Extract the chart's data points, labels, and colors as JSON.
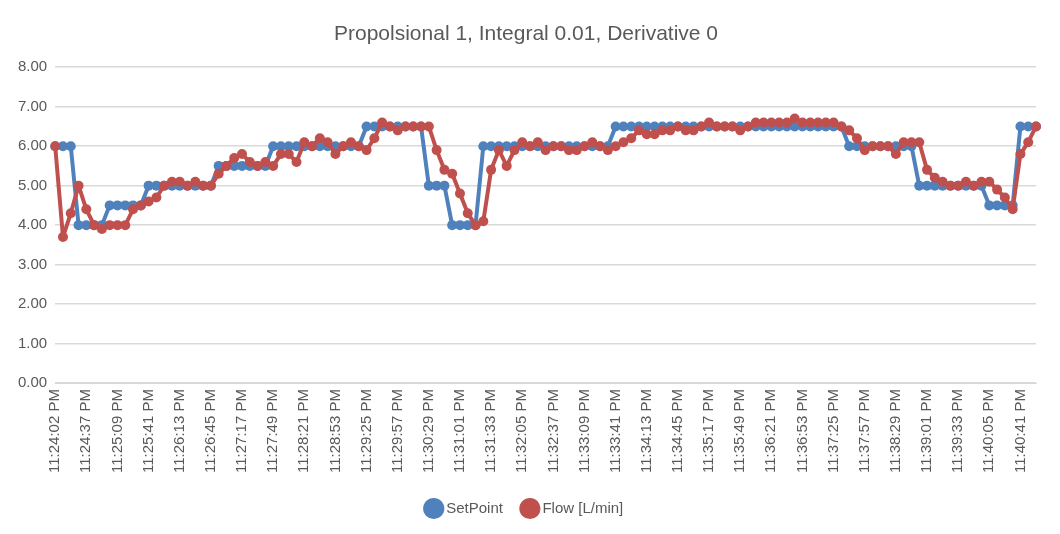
{
  "chart_data": {
    "type": "line",
    "title": "Propolsional 1, Integral 0.01, Derivative 0",
    "categories": [
      "11:24:02 PM",
      null,
      null,
      null,
      "11:24:37 PM",
      null,
      null,
      null,
      "11:25:09 PM",
      null,
      null,
      null,
      "11:25:41 PM",
      null,
      null,
      null,
      "11:26:13 PM",
      null,
      null,
      null,
      "11:26:45 PM",
      null,
      null,
      null,
      "11:27:17 PM",
      null,
      null,
      null,
      "11:27:49 PM",
      null,
      null,
      null,
      "11:28:21 PM",
      null,
      null,
      null,
      "11:28:53 PM",
      null,
      null,
      null,
      "11:29:25 PM",
      null,
      null,
      null,
      "11:29:57 PM",
      null,
      null,
      null,
      "11:30:29 PM",
      null,
      null,
      null,
      "11:31:01 PM",
      null,
      null,
      null,
      "11:31:33 PM",
      null,
      null,
      null,
      "11:32:05 PM",
      null,
      null,
      null,
      "11:32:37 PM",
      null,
      null,
      null,
      "11:33:09 PM",
      null,
      null,
      null,
      "11:33:41 PM",
      null,
      null,
      null,
      "11:34:13 PM",
      null,
      null,
      null,
      "11:34:45 PM",
      null,
      null,
      null,
      "11:35:17 PM",
      null,
      null,
      null,
      "11:35:49 PM",
      null,
      null,
      null,
      "11:36:21 PM",
      null,
      null,
      null,
      "11:36:53 PM",
      null,
      null,
      null,
      "11:37:25 PM",
      null,
      null,
      null,
      "11:37:57 PM",
      null,
      null,
      null,
      "11:38:29 PM",
      null,
      null,
      null,
      "11:39:01 PM",
      null,
      null,
      null,
      "11:39:33 PM",
      null,
      null,
      null,
      "11:40:05 PM",
      null,
      null,
      null,
      "11:40:41 PM",
      null,
      null
    ],
    "series": [
      {
        "name": "SetPoint",
        "color": "#4f81bd",
        "values": [
          6,
          6,
          6,
          4,
          4,
          4,
          4,
          4.5,
          4.5,
          4.5,
          4.5,
          4.5,
          5,
          5,
          5,
          5,
          5,
          5,
          5,
          5,
          5,
          5.5,
          5.5,
          5.5,
          5.5,
          5.5,
          5.5,
          5.5,
          6,
          6,
          6,
          6,
          6,
          6,
          6,
          6,
          6,
          6,
          6,
          6,
          6.5,
          6.5,
          6.5,
          6.5,
          6.5,
          6.5,
          6.5,
          6.5,
          5,
          5,
          5,
          4,
          4,
          4,
          4,
          6,
          6,
          6,
          6,
          6,
          6,
          6,
          6,
          6,
          6,
          6,
          6,
          6,
          6,
          6,
          6,
          6,
          6.5,
          6.5,
          6.5,
          6.5,
          6.5,
          6.5,
          6.5,
          6.5,
          6.5,
          6.5,
          6.5,
          6.5,
          6.5,
          6.5,
          6.5,
          6.5,
          6.5,
          6.5,
          6.5,
          6.5,
          6.5,
          6.5,
          6.5,
          6.5,
          6.5,
          6.5,
          6.5,
          6.5,
          6.5,
          6.5,
          6,
          6,
          6,
          6,
          6,
          6,
          6,
          6,
          6,
          5,
          5,
          5,
          5,
          5,
          5,
          5,
          5,
          5,
          4.5,
          4.5,
          4.5,
          4.5,
          6.5,
          6.5,
          6.5
        ]
      },
      {
        "name": "Flow [L/min]",
        "color": "#c0504d",
        "values": [
          6,
          3.7,
          4.3,
          5.0,
          4.4,
          4.0,
          3.9,
          4.0,
          4.0,
          4.0,
          4.4,
          4.5,
          4.6,
          4.7,
          5.0,
          5.1,
          5.1,
          5.0,
          5.1,
          5.0,
          5.0,
          5.3,
          5.5,
          5.7,
          5.8,
          5.6,
          5.5,
          5.6,
          5.5,
          5.8,
          5.8,
          5.6,
          6.1,
          6.0,
          6.2,
          6.1,
          5.8,
          6.0,
          6.1,
          6.0,
          5.9,
          6.2,
          6.6,
          6.5,
          6.4,
          6.5,
          6.5,
          6.5,
          6.5,
          5.9,
          5.4,
          5.3,
          4.8,
          4.3,
          4.0,
          4.1,
          5.4,
          5.9,
          5.5,
          5.9,
          6.1,
          6.0,
          6.1,
          5.9,
          6.0,
          6.0,
          5.9,
          5.9,
          6.0,
          6.1,
          6.0,
          5.9,
          6.0,
          6.1,
          6.2,
          6.4,
          6.3,
          6.3,
          6.4,
          6.4,
          6.5,
          6.4,
          6.4,
          6.5,
          6.6,
          6.5,
          6.5,
          6.5,
          6.4,
          6.5,
          6.6,
          6.6,
          6.6,
          6.6,
          6.6,
          6.7,
          6.6,
          6.6,
          6.6,
          6.6,
          6.6,
          6.5,
          6.4,
          6.2,
          5.9,
          6.0,
          6.0,
          6.0,
          5.8,
          6.1,
          6.1,
          6.1,
          5.4,
          5.2,
          5.1,
          5.0,
          5.0,
          5.1,
          5.0,
          5.1,
          5.1,
          4.9,
          4.7,
          4.4,
          5.8,
          6.1,
          6.5
        ]
      }
    ],
    "ylim": [
      0,
      8
    ],
    "yticks": [
      {
        "value": 0,
        "label": "0.00"
      },
      {
        "value": 1,
        "label": "1.00"
      },
      {
        "value": 2,
        "label": "2.00"
      },
      {
        "value": 3,
        "label": "3.00"
      },
      {
        "value": 4,
        "label": "4.00"
      },
      {
        "value": 5,
        "label": "5.00"
      },
      {
        "value": 6,
        "label": "6.00"
      },
      {
        "value": 7,
        "label": "7.00"
      },
      {
        "value": 8,
        "label": "8.00"
      }
    ],
    "grid": "y",
    "legend": "bottom",
    "marker": "circle",
    "line_style": "solid"
  }
}
